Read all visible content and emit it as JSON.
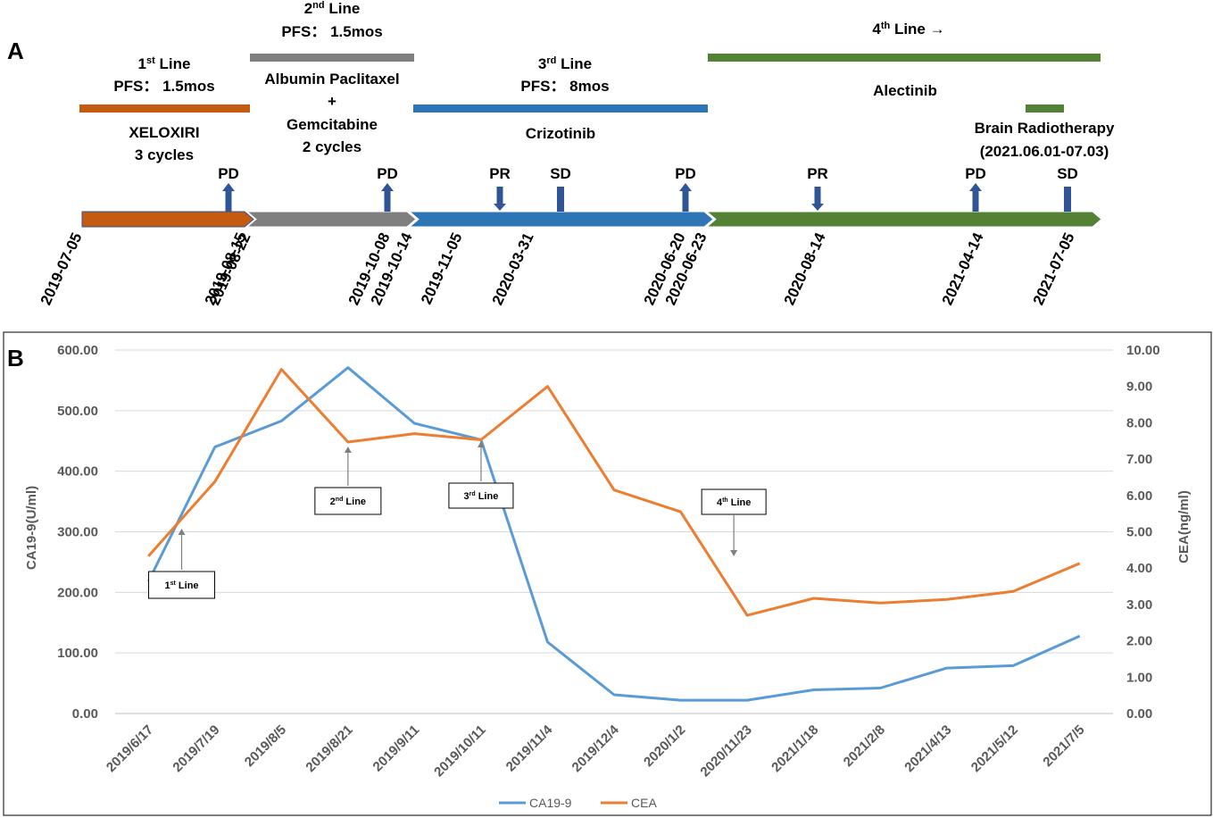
{
  "panel_a": {
    "label": "A",
    "lines": [
      {
        "title": "1",
        "sup": "st",
        "title_tail": " Line",
        "pfs": "PFS：  1.5mos",
        "drug1": "XELOXIRI",
        "drug2": "3 cycles",
        "color": "#C55A11"
      },
      {
        "title": "2",
        "sup": "nd",
        "title_tail": " Line",
        "pfs": "PFS：  1.5mos",
        "drug1": "Albumin Paclitaxel",
        "drug2": "+",
        "drug3": "Gemcitabine",
        "drug4": "2 cycles",
        "color": "#7F7F7F"
      },
      {
        "title": "3",
        "sup": "rd",
        "title_tail": " Line",
        "pfs": "PFS：  8mos",
        "drug1": "Crizotinib",
        "color": "#2E75B6"
      },
      {
        "title": "4",
        "sup": "th",
        "title_tail": " Line →",
        "drug1": "Alectinib",
        "color": "#548235"
      }
    ],
    "radiotherapy": {
      "label1": "Brain Radiotherapy",
      "label2": "(2021.06.01-07.03)",
      "color": "#548235"
    },
    "events": [
      {
        "label": "PD",
        "dir": "up"
      },
      {
        "label": "PD",
        "dir": "up"
      },
      {
        "label": "PR",
        "dir": "down"
      },
      {
        "label": "SD",
        "dir": "bar"
      },
      {
        "label": "PD",
        "dir": "up"
      },
      {
        "label": "PR",
        "dir": "down"
      },
      {
        "label": "PD",
        "dir": "up"
      },
      {
        "label": "SD",
        "dir": "bar"
      }
    ],
    "dates": [
      "2019-07-05",
      "2019-08-15",
      "2019-08-22",
      "2019-10-08",
      "2019-10-14",
      "2019-11-05",
      "2020-03-31",
      "2020-06-20",
      "2020-06-23",
      "2020-08-14",
      "2021-04-14",
      "2021-07-05"
    ],
    "arrow_color": "#2F5597"
  },
  "chart_data": {
    "label": "B",
    "type": "line",
    "categories": [
      "2019/6/17",
      "2019/7/19",
      "2019/8/5",
      "2019/8/21",
      "2019/9/11",
      "2019/10/11",
      "2019/11/4",
      "2019/12/4",
      "2020/1/2",
      "2020/11/23",
      "2021/1/18",
      "2021/2/8",
      "2021/4/13",
      "2021/5/12",
      "2021/7/5"
    ],
    "series": [
      {
        "name": "CA19-9",
        "axis": "left",
        "color": "#5B9BD5",
        "values": [
          218,
          440,
          483,
          571,
          479,
          452,
          118,
          31,
          22,
          22,
          39,
          42,
          75,
          79,
          128
        ]
      },
      {
        "name": "CEA",
        "axis": "right",
        "color": "#ED7D31",
        "values": [
          4.33,
          6.38,
          9.47,
          7.47,
          7.7,
          7.53,
          9.0,
          6.15,
          5.55,
          2.7,
          3.17,
          3.04,
          3.14,
          3.36,
          4.13
        ]
      }
    ],
    "ylabel_left": "CA19-9(U/ml)",
    "ylabel_right": "CEA(ng/ml)",
    "ylim_left": [
      0,
      600
    ],
    "ylim_right": [
      0,
      10
    ],
    "yticks_left": [
      "0.00",
      "100.00",
      "200.00",
      "300.00",
      "400.00",
      "500.00",
      "600.00"
    ],
    "yticks_right": [
      "0.00",
      "1.00",
      "2.00",
      "3.00",
      "4.00",
      "5.00",
      "6.00",
      "7.00",
      "8.00",
      "9.00",
      "10.00"
    ],
    "grid": true,
    "legend": "bottom",
    "annotations": [
      {
        "num": "1",
        "sup": "st",
        "text": " Line",
        "category_index": 0.5,
        "arrow": "up"
      },
      {
        "num": "2",
        "sup": "nd",
        "text": " Line",
        "category_index": 3,
        "arrow": "up"
      },
      {
        "num": "3",
        "sup": "rd",
        "text": " Line",
        "category_index": 5,
        "arrow": "up"
      },
      {
        "num": "4",
        "sup": "th",
        "text": " Line",
        "category_index": 8.8,
        "arrow": "down"
      }
    ]
  }
}
